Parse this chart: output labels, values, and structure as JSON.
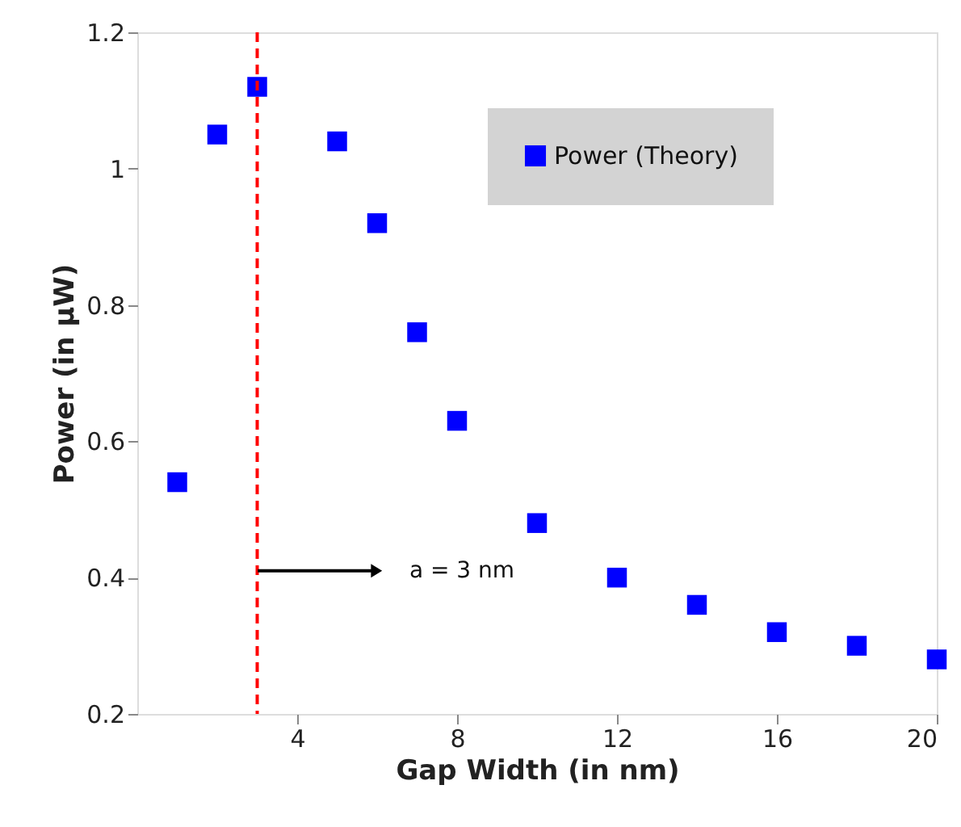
{
  "chart_data": {
    "type": "scatter",
    "xlabel": "Gap Width (in nm)",
    "ylabel": "Power (in μW)",
    "x": [
      1,
      2,
      3,
      5,
      6,
      7,
      8,
      10,
      12,
      14,
      16,
      18,
      20
    ],
    "series": [
      {
        "name": "Power (Theory)",
        "color": "#0000ff",
        "values": [
          0.54,
          1.05,
          1.12,
          1.04,
          0.92,
          0.76,
          0.63,
          0.48,
          0.4,
          0.36,
          0.32,
          0.3,
          0.28
        ]
      }
    ],
    "xlim": [
      0,
      20
    ],
    "xticks": [
      4,
      8,
      12,
      16,
      20
    ],
    "ylim": [
      0.2,
      1.2
    ],
    "yticks": [
      0.2,
      0.4,
      0.6,
      0.8,
      {
        "value": 1,
        "label": "1"
      },
      1.2
    ],
    "ref_lines": [
      {
        "axis": "x",
        "value": 3,
        "color": "#ff0000",
        "line_style": "dashed"
      }
    ],
    "annotations": [
      "a = 3 nm"
    ],
    "marker": "square",
    "grid": false,
    "legend": "top right"
  }
}
